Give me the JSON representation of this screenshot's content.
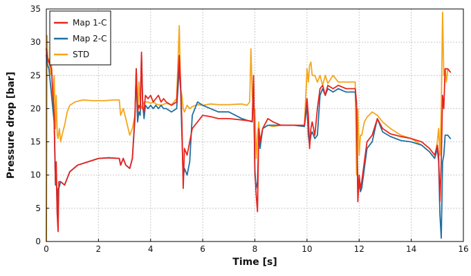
{
  "chart_data": {
    "type": "line",
    "title": "",
    "xlabel": "Time [s]",
    "ylabel": "Pressure drop [bar]",
    "xlim": [
      0,
      16
    ],
    "ylim": [
      0,
      35
    ],
    "xticks": [
      "0",
      "2",
      "4",
      "6",
      "8",
      "10",
      "12",
      "14",
      "16"
    ],
    "yticks": [
      "0",
      "5",
      "10",
      "15",
      "20",
      "25",
      "30",
      "35"
    ],
    "grid": true,
    "legend": "top-left",
    "series": [
      {
        "name": "Map 1-C",
        "color": "#e8231d",
        "x": [
          0,
          0.05,
          0.1,
          0.2,
          0.3,
          0.35,
          0.38,
          0.42,
          0.45,
          0.48,
          0.55,
          0.7,
          0.9,
          1.2,
          1.6,
          2.0,
          2.4,
          2.8,
          2.85,
          2.95,
          3.05,
          3.2,
          3.3,
          3.4,
          3.45,
          3.5,
          3.55,
          3.6,
          3.65,
          3.7,
          3.75,
          3.8,
          3.9,
          4.0,
          4.1,
          4.2,
          4.3,
          4.4,
          4.5,
          4.6,
          4.8,
          5.0,
          5.1,
          5.15,
          5.2,
          5.25,
          5.3,
          5.4,
          5.5,
          5.6,
          5.8,
          6.0,
          6.3,
          6.6,
          7.0,
          7.5,
          7.9,
          7.95,
          8.0,
          8.05,
          8.1,
          8.15,
          8.2,
          8.3,
          8.5,
          8.7,
          9.0,
          9.5,
          9.9,
          10.0,
          10.05,
          10.1,
          10.15,
          10.2,
          10.3,
          10.4,
          10.5,
          10.6,
          10.7,
          10.8,
          11.0,
          11.2,
          11.5,
          11.85,
          11.9,
          11.95,
          12.0,
          12.05,
          12.1,
          12.2,
          12.3,
          12.5,
          12.7,
          12.9,
          13.2,
          13.6,
          14.0,
          14.4,
          14.7,
          14.9,
          15.0,
          15.05,
          15.1,
          15.15,
          15.2,
          15.25,
          15.3,
          15.4,
          15.5
        ],
        "y": [
          29,
          27.5,
          27,
          26,
          19,
          9,
          12,
          4,
          1.5,
          9,
          9,
          8.5,
          10.5,
          11.5,
          12,
          12.5,
          12.6,
          12.5,
          11.5,
          12.5,
          11.5,
          11,
          12.5,
          19,
          26,
          19.5,
          20.5,
          20,
          28.5,
          20,
          19.5,
          22,
          21.5,
          22,
          21,
          21.5,
          22,
          21,
          21.5,
          21,
          20.5,
          21,
          28,
          24,
          18,
          8,
          14,
          13,
          15,
          17,
          18,
          19,
          18.8,
          18.5,
          18.5,
          18.3,
          18.1,
          25,
          11,
          7,
          4.5,
          17,
          15,
          17,
          18.5,
          18,
          17.5,
          17.5,
          17.5,
          21.5,
          19,
          14,
          17,
          18,
          16,
          20,
          23,
          23.5,
          22,
          23.5,
          23,
          23.5,
          23,
          23,
          21,
          6,
          10,
          8,
          9,
          12,
          15,
          16,
          18.5,
          17,
          16.2,
          15.8,
          15.5,
          15,
          14,
          13,
          14.5,
          13,
          6,
          12,
          22,
          20,
          26,
          26,
          25.5
        ]
      },
      {
        "name": "Map 2-C",
        "color": "#1f6fa0",
        "x": [
          0,
          0.05,
          0.1,
          0.2,
          0.3,
          0.35,
          0.38,
          0.42,
          0.45,
          0.48,
          0.55,
          0.7,
          0.9,
          1.2,
          1.6,
          2.0,
          2.4,
          2.8,
          2.85,
          2.95,
          3.05,
          3.2,
          3.3,
          3.4,
          3.45,
          3.5,
          3.55,
          3.6,
          3.65,
          3.7,
          3.75,
          3.8,
          3.9,
          4.0,
          4.1,
          4.2,
          4.3,
          4.4,
          4.5,
          4.6,
          4.8,
          5.0,
          5.1,
          5.15,
          5.2,
          5.25,
          5.3,
          5.4,
          5.5,
          5.6,
          5.8,
          6.0,
          6.3,
          6.6,
          7.0,
          7.5,
          7.9,
          7.95,
          8.0,
          8.05,
          8.1,
          8.15,
          8.2,
          8.3,
          8.5,
          8.7,
          9.0,
          9.5,
          9.9,
          10.0,
          10.05,
          10.1,
          10.15,
          10.2,
          10.3,
          10.4,
          10.5,
          10.6,
          10.7,
          10.8,
          11.0,
          11.2,
          11.5,
          11.85,
          11.9,
          11.95,
          12.0,
          12.05,
          12.1,
          12.2,
          12.3,
          12.5,
          12.7,
          12.9,
          13.2,
          13.6,
          14.0,
          14.4,
          14.7,
          14.9,
          15.0,
          15.05,
          15.1,
          15.15,
          15.2,
          15.25,
          15.3,
          15.4,
          15.5
        ],
        "y": [
          28,
          26.5,
          26,
          22,
          18,
          8.5,
          10,
          4,
          8,
          8,
          9,
          8.5,
          10.5,
          11.5,
          12,
          12.5,
          12.6,
          12.5,
          11.5,
          12.5,
          11.5,
          11,
          12.5,
          18.5,
          26,
          18,
          19.5,
          19,
          28,
          20.5,
          18.5,
          20.5,
          20,
          20.5,
          20,
          20.5,
          20,
          20.5,
          20,
          20,
          19.5,
          20,
          26,
          23,
          16,
          9.5,
          11,
          10,
          12,
          19,
          21,
          20.5,
          20,
          19.5,
          19.5,
          18.5,
          18,
          24,
          10,
          8,
          9,
          16,
          14,
          17,
          17.5,
          17.5,
          17.5,
          17.5,
          17.3,
          20.5,
          16,
          14.5,
          16,
          16.5,
          15.5,
          16,
          22,
          23,
          22,
          23,
          22.5,
          23,
          22.5,
          22.5,
          20,
          7,
          9,
          7.5,
          8,
          11,
          14,
          15,
          18.5,
          16.5,
          15.8,
          15.2,
          15,
          14.5,
          13.5,
          12.5,
          14,
          12,
          4,
          0.5,
          12,
          13,
          16,
          16,
          15.5
        ]
      },
      {
        "name": "STD",
        "color": "#f5a519",
        "x": [
          0,
          0.03,
          0.06,
          0.1,
          0.15,
          0.2,
          0.25,
          0.3,
          0.35,
          0.38,
          0.42,
          0.45,
          0.5,
          0.55,
          0.6,
          0.7,
          0.8,
          0.9,
          1.1,
          1.4,
          1.8,
          2.2,
          2.6,
          2.8,
          2.85,
          2.95,
          3.05,
          3.2,
          3.3,
          3.4,
          3.45,
          3.5,
          3.55,
          3.6,
          3.65,
          3.7,
          3.75,
          3.8,
          3.9,
          4.0,
          4.1,
          4.2,
          4.4,
          4.6,
          4.8,
          5.0,
          5.1,
          5.15,
          5.2,
          5.25,
          5.3,
          5.4,
          5.5,
          5.6,
          5.8,
          6.0,
          6.3,
          6.6,
          7.0,
          7.5,
          7.7,
          7.8,
          7.85,
          7.9,
          7.95,
          8.0,
          8.05,
          8.1,
          8.15,
          8.2,
          8.3,
          8.5,
          8.7,
          9.0,
          9.5,
          9.9,
          10.0,
          10.05,
          10.1,
          10.15,
          10.2,
          10.3,
          10.4,
          10.5,
          10.6,
          10.7,
          10.8,
          11.0,
          11.2,
          11.5,
          11.85,
          11.9,
          11.95,
          12.0,
          12.05,
          12.1,
          12.2,
          12.3,
          12.5,
          12.7,
          12.9,
          13.2,
          13.6,
          14.0,
          14.4,
          14.7,
          14.9,
          15.0,
          15.05,
          15.1,
          15.15,
          15.2,
          15.25,
          15.3,
          15.35,
          15.4,
          15.5
        ],
        "y": [
          0,
          31,
          27,
          27.5,
          25,
          26.5,
          20,
          25,
          17,
          22,
          16,
          15.5,
          17,
          15,
          16,
          17.5,
          19.5,
          20.5,
          21,
          21.3,
          21.2,
          21.2,
          21.3,
          21.3,
          19,
          20,
          18.5,
          16,
          17,
          19,
          26,
          18,
          24,
          21,
          20,
          20.5,
          21,
          21,
          21,
          20.8,
          21,
          20.7,
          20.5,
          20.8,
          20.6,
          21.5,
          32.5,
          23,
          22,
          20,
          19.5,
          20.5,
          20,
          20.3,
          20.6,
          20.5,
          20.7,
          20.6,
          20.6,
          20.7,
          20.5,
          21,
          29,
          22,
          20,
          20,
          12.5,
          16,
          18,
          15,
          17,
          17.5,
          17.3,
          17.5,
          17.5,
          17.3,
          26,
          24,
          26.5,
          27,
          25,
          25,
          24,
          25,
          23.5,
          25,
          23.8,
          25,
          24,
          24,
          24,
          10,
          20,
          13,
          16,
          16,
          18,
          18.7,
          19.5,
          19,
          18,
          17,
          16,
          15.5,
          14.5,
          13.5,
          12.5,
          15,
          17,
          13,
          20,
          34.5,
          25,
          26,
          24,
          26,
          25.5
        ]
      }
    ]
  }
}
